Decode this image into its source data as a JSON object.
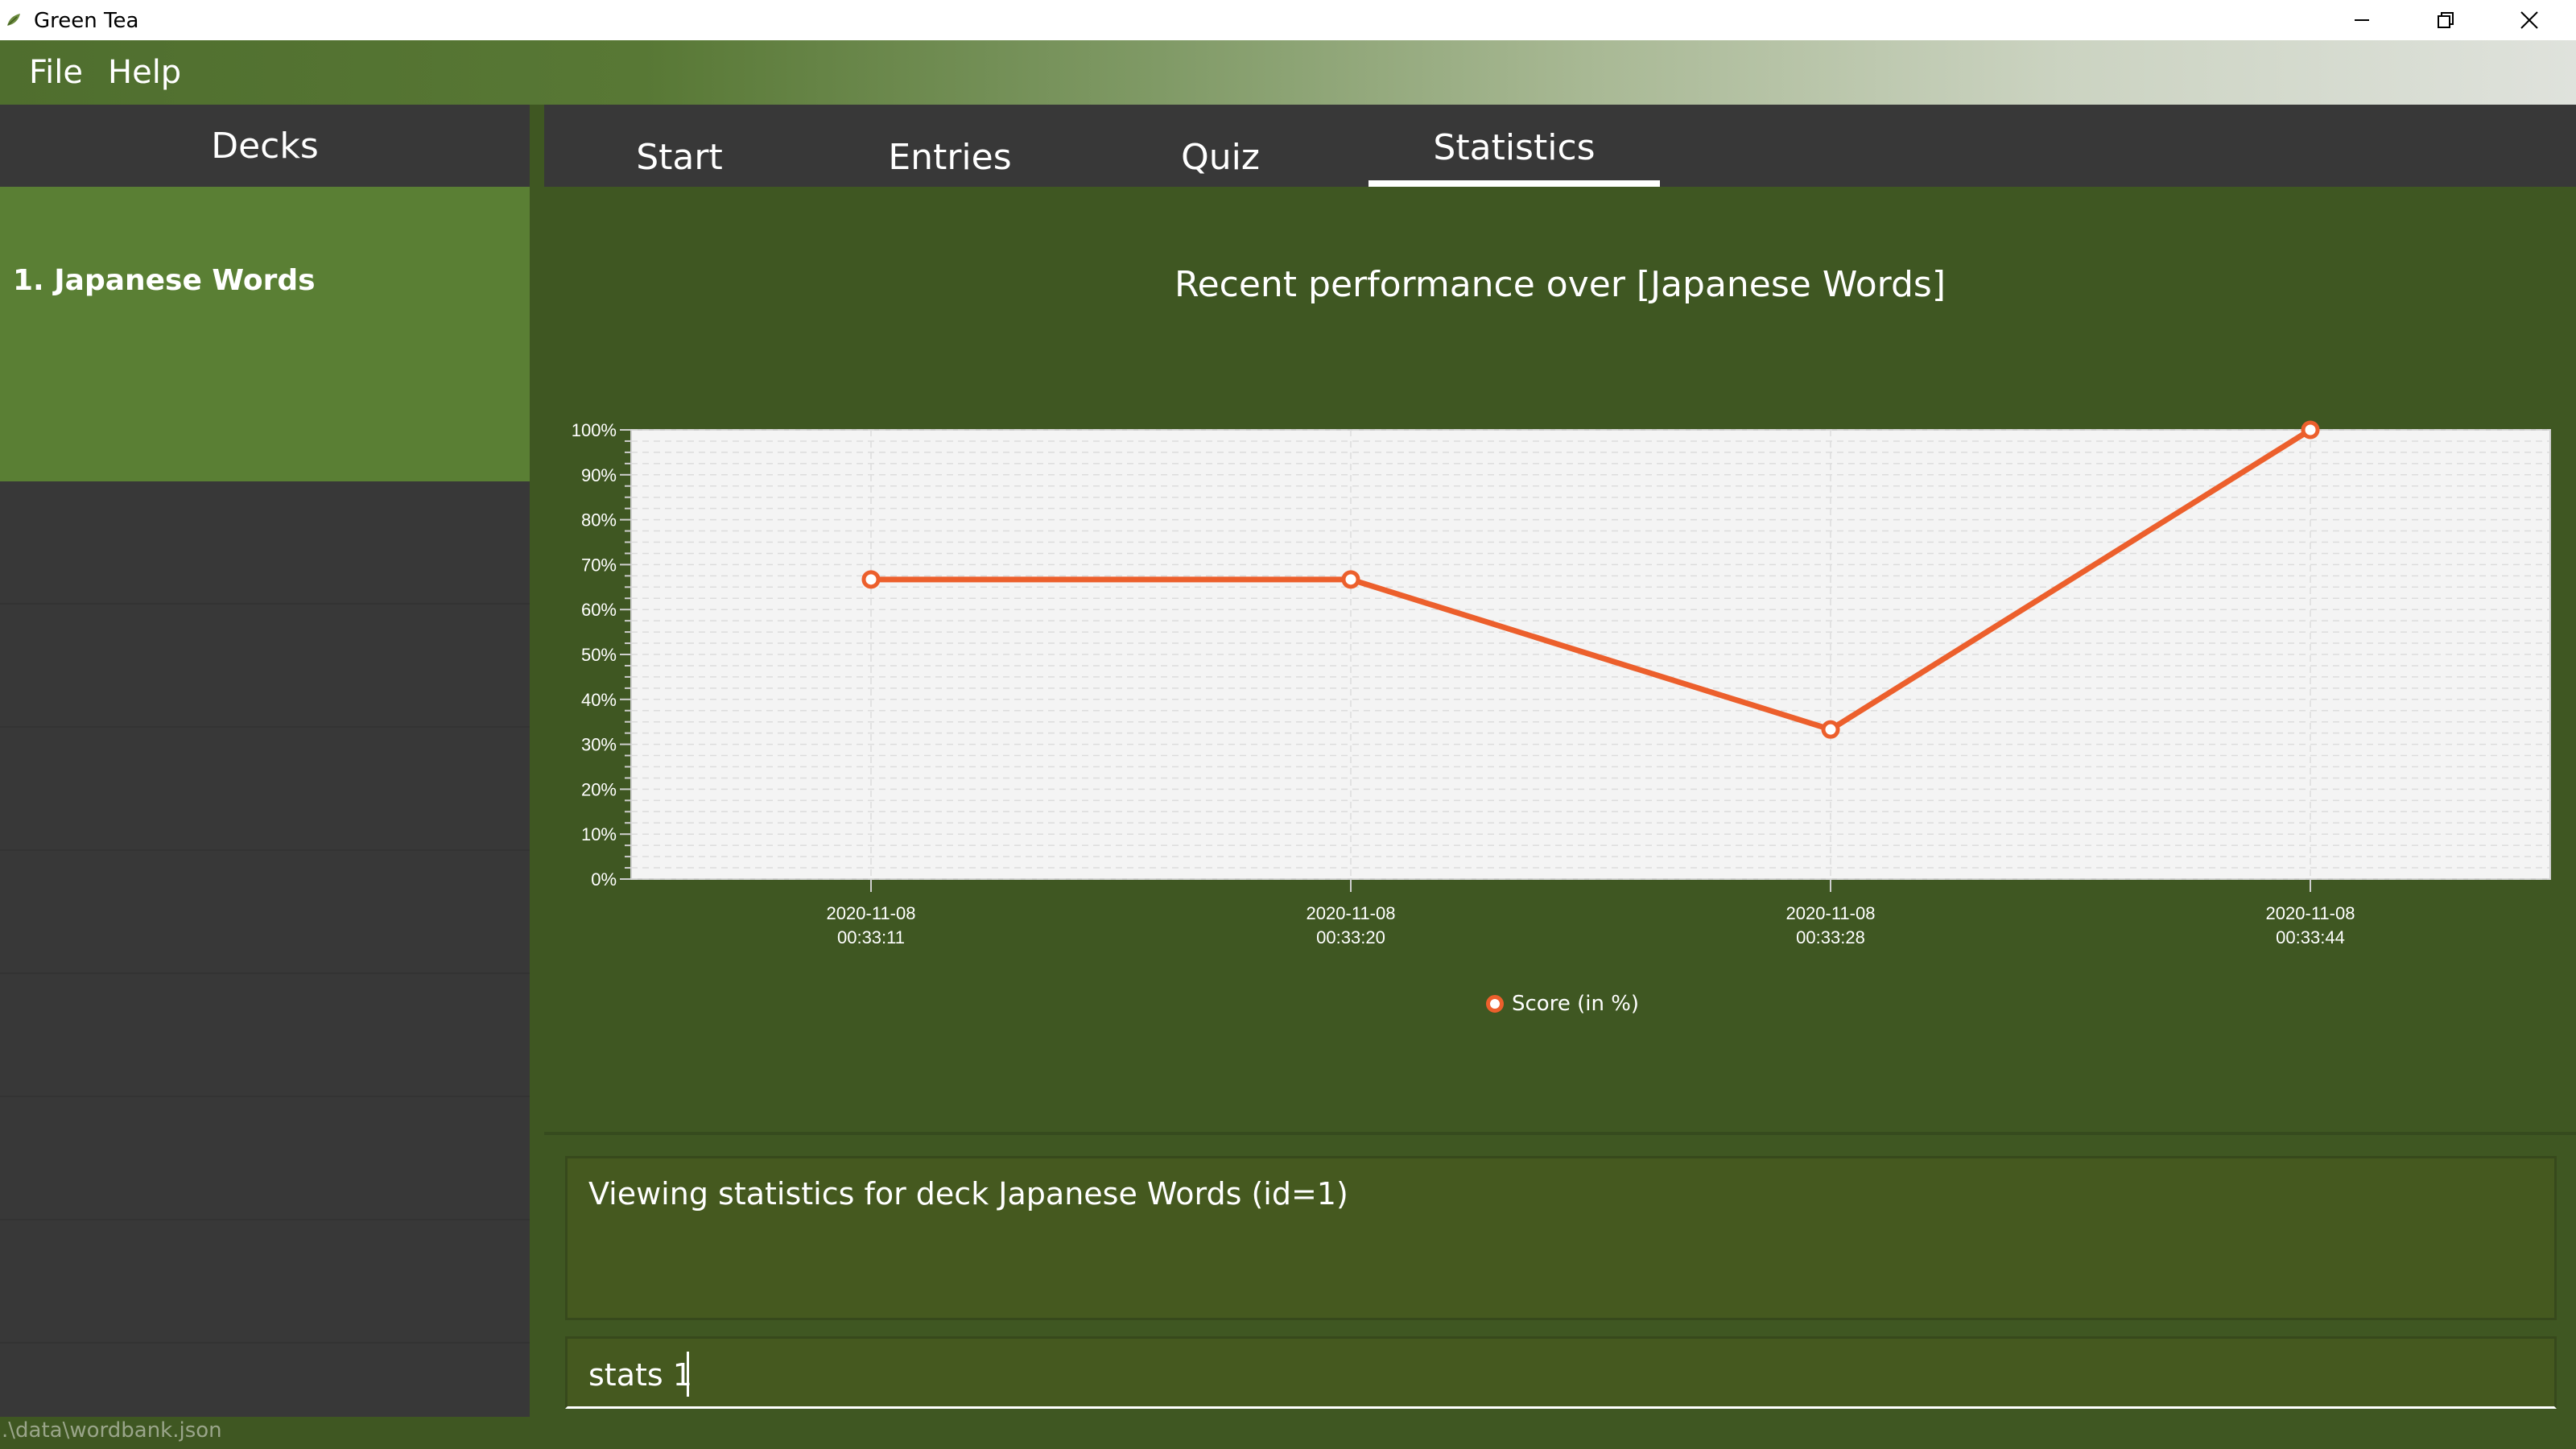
{
  "window": {
    "title": "Green Tea"
  },
  "menu": {
    "file": "File",
    "help": "Help"
  },
  "sidebar": {
    "header": "Decks",
    "decks": [
      {
        "label": "1.  Japanese Words"
      }
    ]
  },
  "tabs": [
    {
      "label": "Start"
    },
    {
      "label": "Entries"
    },
    {
      "label": "Quiz"
    },
    {
      "label": "Statistics"
    }
  ],
  "chart_data": {
    "type": "line",
    "title": "Recent performance over [Japanese Words]",
    "categories": [
      [
        "2020-11-08",
        "00:33:11"
      ],
      [
        "2020-11-08",
        "00:33:20"
      ],
      [
        "2020-11-08",
        "00:33:28"
      ],
      [
        "2020-11-08",
        "00:33:44"
      ]
    ],
    "series": [
      {
        "name": "Score (in %)",
        "values": [
          66.7,
          66.7,
          33.3,
          100
        ],
        "color": "#ec5f2c"
      }
    ],
    "ylim": [
      0,
      100
    ],
    "yticks": [
      "0%",
      "10%",
      "20%",
      "30%",
      "40%",
      "50%",
      "60%",
      "70%",
      "80%",
      "90%",
      "100%"
    ],
    "grid": true,
    "legend": "bottom"
  },
  "result": {
    "text": "Viewing statistics for deck Japanese Words (id=1)"
  },
  "command": {
    "value": "stats 1"
  },
  "status": {
    "path": ".\\data\\wordbank.json"
  },
  "colors": {
    "accent": "#5a7f34",
    "background": "#3f5722",
    "series": "#ec5f2c"
  }
}
